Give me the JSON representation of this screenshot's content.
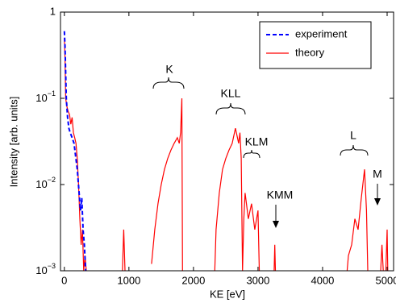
{
  "chart_data": {
    "type": "line",
    "xlabel": "KE [eV]",
    "ylabel": "Intensity [arb. units]",
    "xlim": [
      -60,
      5100
    ],
    "ylim": [
      0.001,
      1
    ],
    "log_y": true,
    "xticks": [
      0,
      1000,
      2000,
      3000,
      4000,
      5000
    ],
    "yticks": [
      1,
      {
        "value": 0.1,
        "label": "10",
        "exponent": "−1"
      },
      {
        "value": 0.01,
        "label": "10",
        "exponent": "−2"
      },
      {
        "value": 0.001,
        "label": "10",
        "exponent": "−3"
      }
    ],
    "annotations": [
      "K",
      "KLL",
      "KLM",
      "KMM",
      "L",
      "M"
    ],
    "series": [
      {
        "name": "experiment",
        "color": "#0000ff",
        "dash": true,
        "x": [
          0,
          10,
          20,
          30,
          50,
          70,
          90,
          120,
          150,
          200,
          250,
          270,
          290,
          310,
          330
        ],
        "values": [
          0.6,
          0.4,
          0.2,
          0.1,
          0.06,
          0.045,
          0.04,
          0.035,
          0.03,
          0.015,
          0.005,
          0.007,
          0.003,
          0.002,
          0.001
        ]
      },
      {
        "name": "theory",
        "color": "#ff0000",
        "dash": false,
        "x": [
          0,
          10,
          20,
          40,
          60,
          80,
          100,
          120,
          140,
          160,
          180,
          200,
          220,
          240,
          260,
          280,
          300,
          320,
          340,
          600,
          900,
          920,
          940,
          1100,
          1350,
          1400,
          1450,
          1500,
          1550,
          1600,
          1650,
          1700,
          1750,
          1780,
          1800,
          1820,
          1830,
          2000,
          2330,
          2350,
          2400,
          2450,
          2500,
          2550,
          2600,
          2650,
          2700,
          2720,
          2740,
          2760,
          2780,
          2800,
          2850,
          2900,
          2950,
          3000,
          3020,
          3100,
          3250,
          3260,
          3270,
          3400,
          4380,
          4400,
          4450,
          4500,
          4550,
          4600,
          4650,
          4680,
          4700,
          4800,
          4900,
          4920,
          4940,
          4960,
          4980,
          5000,
          5010
        ],
        "values": [
          0.5,
          0.3,
          0.1,
          0.08,
          0.07,
          0.065,
          0.05,
          0.06,
          0.04,
          0.035,
          0.03,
          0.02,
          0.01,
          0.004,
          0.002,
          0.003,
          0.001,
          0.0015,
          0.001,
          null,
          0.001,
          0.003,
          0.001,
          null,
          0.0012,
          0.003,
          0.006,
          0.01,
          0.015,
          0.02,
          0.025,
          0.03,
          0.035,
          0.03,
          0.04,
          0.1,
          0.001,
          null,
          0.001,
          0.003,
          0.008,
          0.015,
          0.02,
          0.025,
          0.03,
          0.045,
          0.03,
          0.04,
          0.02,
          0.001,
          0.004,
          0.008,
          0.004,
          0.006,
          0.003,
          0.005,
          0.001,
          null,
          0.001,
          0.002,
          0.001,
          null,
          0.001,
          0.0015,
          0.002,
          0.004,
          0.003,
          0.007,
          0.015,
          0.005,
          0.001,
          null,
          0.001,
          0.002,
          0.001,
          null,
          0.001,
          0.003,
          0.001
        ]
      }
    ]
  }
}
